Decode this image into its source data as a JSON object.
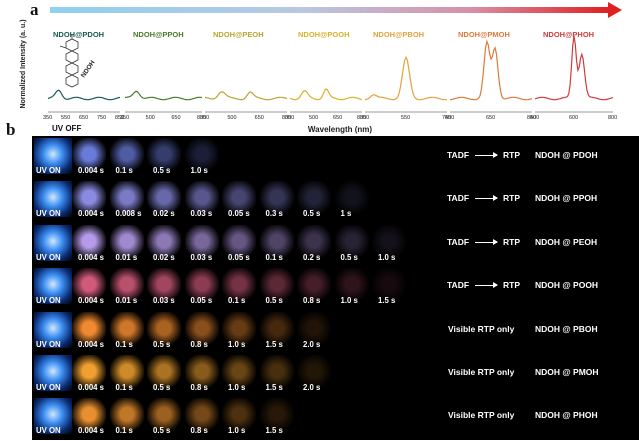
{
  "panel_a_label": "a",
  "panel_b_label": "b",
  "panel_a": {
    "ylabel": "Normalized Intensity (a. u.)",
    "xlabel": "Wavelength (nm)",
    "molecule_label": "NDOH",
    "spectra": [
      {
        "name": "NDOH@PDOH",
        "color": "#1a5a52",
        "ticks": [
          "350",
          "550",
          "650",
          "750",
          "850"
        ]
      },
      {
        "name": "NDOH@PPOH",
        "color": "#4c7a2e",
        "ticks": [
          "350",
          "500",
          "650",
          "800"
        ]
      },
      {
        "name": "NDOH@PEOH",
        "color": "#b9a632",
        "ticks": [
          "350",
          "500",
          "650",
          "800"
        ]
      },
      {
        "name": "NDOH@POOH",
        "color": "#d5b32a",
        "ticks": [
          "350",
          "500",
          "650",
          "800"
        ]
      },
      {
        "name": "NDOH@PBOH",
        "color": "#e2a23c",
        "ticks": [
          "350",
          "550",
          "750"
        ]
      },
      {
        "name": "NDOH@PMOH",
        "color": "#dd7a3a",
        "ticks": [
          "450",
          "650",
          "850"
        ]
      },
      {
        "name": "NDOH@PHOH",
        "color": "#d13a3a",
        "ticks": [
          "400",
          "600",
          "800"
        ]
      }
    ]
  },
  "panel_b": {
    "uv_off_label": "UV OFF",
    "uv_on_label": "UV ON",
    "rows": [
      {
        "times": [
          "0.004 s",
          "0.1 s",
          "0.5 s",
          "1.0 s"
        ],
        "mode_left": "TADF",
        "mode_right": "RTP",
        "sample": "NDOH @ PDOH",
        "tone": "#6a7ad8"
      },
      {
        "times": [
          "0.004 s",
          "0.008 s",
          "0.02 s",
          "0.03 s",
          "0.05 s",
          "0.3 s",
          "0.5 s",
          "1 s"
        ],
        "mode_left": "TADF",
        "mode_right": "RTP",
        "sample": "NDOH @ PPOH",
        "tone": "#8a8ae0"
      },
      {
        "times": [
          "0.004 s",
          "0.01 s",
          "0.02 s",
          "0.03 s",
          "0.05 s",
          "0.1 s",
          "0.2 s",
          "0.5 s",
          "1.0 s"
        ],
        "mode_left": "TADF",
        "mode_right": "RTP",
        "sample": "NDOH @ PEOH",
        "tone": "#b49ae8"
      },
      {
        "times": [
          "0.004 s",
          "0.01 s",
          "0.03 s",
          "0.05 s",
          "0.1 s",
          "0.5 s",
          "0.8 s",
          "1.0 s",
          "1.5 s"
        ],
        "mode_left": "TADF",
        "mode_right": "RTP",
        "sample": "NDOH @ POOH",
        "tone": "#d05a7a"
      },
      {
        "times": [
          "0.004 s",
          "0.1 s",
          "0.5 s",
          "0.8 s",
          "1.0 s",
          "1.5 s",
          "2.0 s"
        ],
        "mode_left": "Visible RTP only",
        "mode_right": "",
        "sample": "NDOH @ PBOH",
        "tone": "#f08a30"
      },
      {
        "times": [
          "0.004 s",
          "0.1 s",
          "0.5 s",
          "0.8 s",
          "1.0 s",
          "1.5 s",
          "2.0 s"
        ],
        "mode_left": "Visible RTP only",
        "mode_right": "",
        "sample": "NDOH @ PMOH",
        "tone": "#f0a030"
      },
      {
        "times": [
          "0.004 s",
          "0.1 s",
          "0.5 s",
          "0.8 s",
          "1.0 s",
          "1.5 s"
        ],
        "mode_left": "Visible RTP only",
        "mode_right": "",
        "sample": "NDOH @ PHOH",
        "tone": "#e89030"
      }
    ]
  }
}
